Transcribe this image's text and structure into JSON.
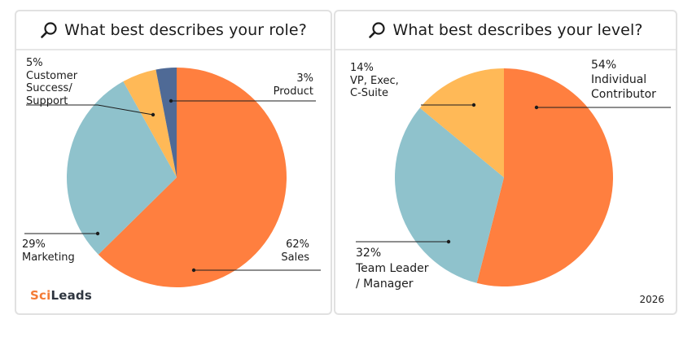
{
  "brand": {
    "part1": "Sci",
    "part2": "Leads",
    "color1": "#f47b36",
    "color2": "#2f3640"
  },
  "year": "2026",
  "icon": "search-icon",
  "chart_data": [
    {
      "type": "pie",
      "title": "What best describes your role?",
      "slices": [
        {
          "label": "Sales",
          "value": 62,
          "pct_text": "62%",
          "color": "#ff7f3f"
        },
        {
          "label": "Marketing",
          "value": 29,
          "pct_text": "29%",
          "color": "#8fc2cc"
        },
        {
          "label": "Customer\nSuccess/\nSupport",
          "value": 5,
          "pct_text": "5%",
          "color": "#ffb957"
        },
        {
          "label": "Product",
          "value": 3,
          "pct_text": "3%",
          "color": "#4f6a96"
        }
      ]
    },
    {
      "type": "pie",
      "title": "What best describes your level?",
      "slices": [
        {
          "label": "Individual\nContributor",
          "value": 54,
          "pct_text": "54%",
          "color": "#ff7f3f"
        },
        {
          "label": "Team Leader\n/ Manager",
          "value": 32,
          "pct_text": "32%",
          "color": "#8fc2cc"
        },
        {
          "label": "VP, Exec,\nC-Suite",
          "value": 14,
          "pct_text": "14%",
          "color": "#ffb957"
        }
      ]
    }
  ]
}
